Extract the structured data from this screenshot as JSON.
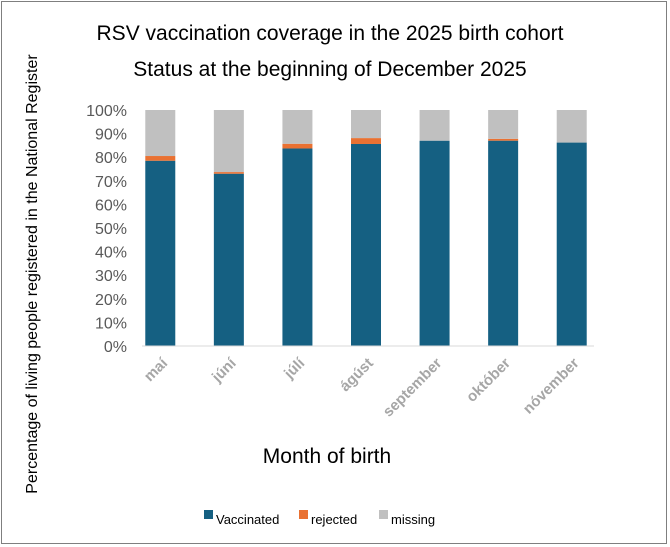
{
  "chart_data": {
    "type": "bar",
    "stacked": true,
    "title": "RSV vaccination coverage in the 2025 birth cohort",
    "subtitle": "Status at the beginning of December 2025",
    "xlabel": "Month of birth",
    "ylabel": "Percentage of living people registered in the National Register",
    "ylim": [
      0,
      100
    ],
    "yticks": [
      "0%",
      "10%",
      "20%",
      "30%",
      "40%",
      "50%",
      "60%",
      "70%",
      "80%",
      "90%",
      "100%"
    ],
    "categories": [
      "maí",
      "júní",
      "júlí",
      "ágúst",
      "september",
      "október",
      "nóvember"
    ],
    "series": [
      {
        "name": "Vaccinated",
        "color": "#156082",
        "values": [
          78.5,
          73,
          83.7,
          85.6,
          87,
          87,
          86.2
        ]
      },
      {
        "name": "rejected",
        "color": "#e97132",
        "values": [
          2,
          0.7,
          2,
          2.5,
          0,
          0.8,
          0
        ]
      },
      {
        "name": "missing",
        "color": "#c0c0c0",
        "values": [
          19.5,
          26.3,
          14.3,
          11.9,
          13,
          12.2,
          13.8
        ]
      }
    ],
    "legend_position": "bottom",
    "grid": false
  }
}
